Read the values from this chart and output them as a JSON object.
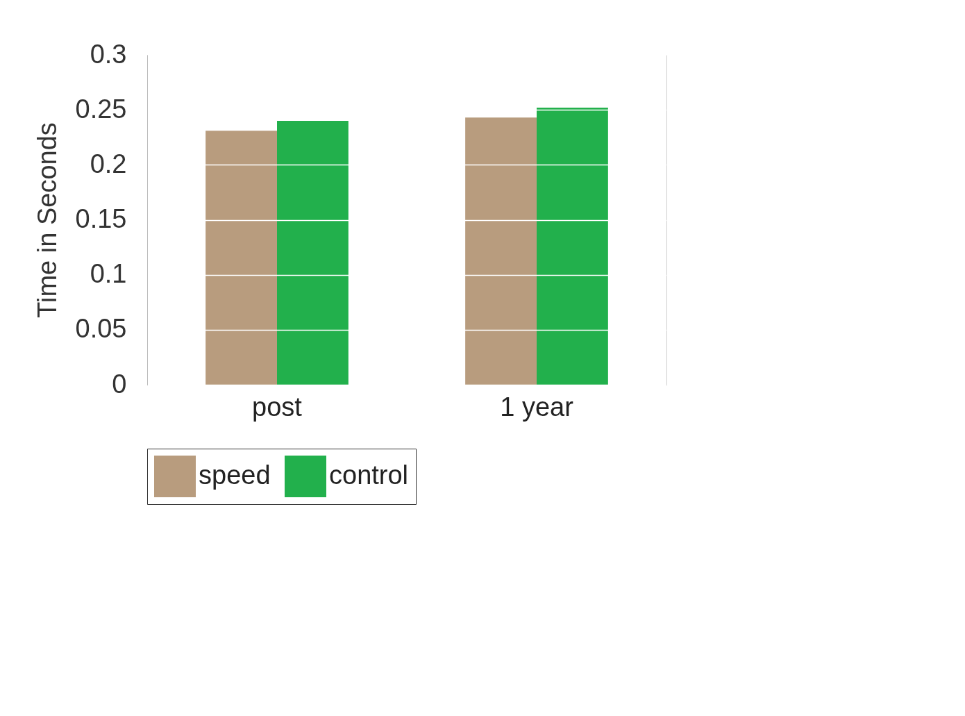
{
  "chart_data": {
    "type": "bar",
    "ylabel": "Time in Seconds",
    "categories": [
      "post",
      "1 year"
    ],
    "series": [
      {
        "name": "speed",
        "color": "#b89c7e",
        "values": [
          0.231,
          0.243
        ]
      },
      {
        "name": "control",
        "color": "#22b04c",
        "values": [
          0.24,
          0.252
        ]
      }
    ],
    "ylim": [
      0,
      0.3
    ],
    "yticks": [
      0,
      0.05,
      0.1,
      0.15,
      0.2,
      0.25,
      0.3
    ],
    "grid": "y",
    "legend": "bottom"
  }
}
